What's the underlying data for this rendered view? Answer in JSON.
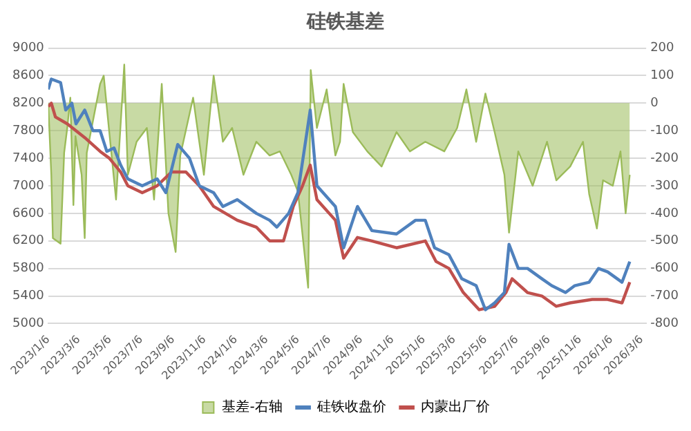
{
  "chart_data": {
    "type": "line",
    "title": "硅铁基差",
    "legend": "bottom",
    "grid": "y",
    "marker": "none",
    "line_style": "solid",
    "ylim": [
      5000,
      9000
    ],
    "yticks": [
      5000,
      5400,
      5800,
      6200,
      6600,
      7000,
      7400,
      7800,
      8200,
      8600,
      9000
    ],
    "y2lim": [
      -800,
      200
    ],
    "y2ticks": [
      -800,
      -700,
      -600,
      -500,
      -400,
      -300,
      -200,
      -100,
      0,
      100,
      200
    ],
    "xlim": [
      "2023-01-06",
      "2026-03-15"
    ],
    "xticks": [
      {
        "value": "2023-01-06",
        "label": "2023/1/6"
      },
      {
        "value": "2023-03-06",
        "label": "2023/3/6"
      },
      {
        "value": "2023-05-06",
        "label": "2023/5/6"
      },
      {
        "value": "2023-07-06",
        "label": "2023/7/6"
      },
      {
        "value": "2023-09-06",
        "label": "2023/9/6"
      },
      {
        "value": "2023-11-06",
        "label": "2023/11/6"
      },
      {
        "value": "2024-01-06",
        "label": "2024/1/6"
      },
      {
        "value": "2024-03-06",
        "label": "2024/3/6"
      },
      {
        "value": "2024-05-06",
        "label": "2024/5/6"
      },
      {
        "value": "2024-07-06",
        "label": "2024/7/6"
      },
      {
        "value": "2024-09-06",
        "label": "2024/9/6"
      },
      {
        "value": "2024-11-06",
        "label": "2024/11/6"
      },
      {
        "value": "2025-01-06",
        "label": "2025/1/6"
      },
      {
        "value": "2025-03-06",
        "label": "2025/3/6"
      },
      {
        "value": "2025-05-06",
        "label": "2025/5/6"
      },
      {
        "value": "2025-07-06",
        "label": "2025/7/6"
      },
      {
        "value": "2025-09-06",
        "label": "2025/9/6"
      },
      {
        "value": "2025-11-06",
        "label": "2025/11/6"
      },
      {
        "value": "2026-01-06",
        "label": "2026/1/6"
      },
      {
        "value": "2026-03-06",
        "label": "2026/3/6"
      }
    ],
    "series": [
      {
        "name": "基差-右轴",
        "type": "area",
        "axis": "y2",
        "color": "#9bbb59",
        "x": [
          "2023-01-06",
          "2023-01-12",
          "2023-01-15",
          "2023-01-30",
          "2023-02-06",
          "2023-02-12",
          "2023-02-18",
          "2023-02-24",
          "2023-02-28",
          "2023-03-12",
          "2023-03-18",
          "2023-03-22",
          "2023-04-17",
          "2023-04-24",
          "2023-05-04",
          "2023-05-18",
          "2023-06-03",
          "2023-06-10",
          "2023-06-27",
          "2023-07-17",
          "2023-07-31",
          "2023-08-15",
          "2023-08-28",
          "2023-09-11",
          "2023-09-20",
          "2023-10-15",
          "2023-11-05",
          "2023-11-24",
          "2023-12-12",
          "2023-12-30",
          "2024-01-21",
          "2024-02-15",
          "2024-03-12",
          "2024-04-01",
          "2024-04-23",
          "2024-05-06",
          "2024-05-26",
          "2024-05-31",
          "2024-06-12",
          "2024-07-01",
          "2024-07-18",
          "2024-07-27",
          "2024-08-03",
          "2024-08-21",
          "2024-09-18",
          "2024-10-16",
          "2024-11-14",
          "2024-12-10",
          "2025-01-09",
          "2025-02-15",
          "2025-03-12",
          "2025-03-30",
          "2025-04-18",
          "2025-05-06",
          "2025-05-24",
          "2025-06-12",
          "2025-06-21",
          "2025-07-09",
          "2025-08-06",
          "2025-09-03",
          "2025-09-21",
          "2025-10-18",
          "2025-11-12",
          "2025-11-24",
          "2025-12-09",
          "2025-12-21",
          "2026-01-09",
          "2026-01-24",
          "2026-02-03",
          "2026-02-11"
        ],
        "values": [
          0,
          -260,
          -490,
          -510,
          -180,
          -90,
          20,
          -370,
          -120,
          -260,
          -490,
          -180,
          70,
          100,
          -90,
          -350,
          140,
          -260,
          -140,
          -90,
          -350,
          70,
          -400,
          -540,
          -190,
          20,
          -260,
          100,
          -140,
          -90,
          -260,
          -140,
          -190,
          -175,
          -260,
          -320,
          -670,
          120,
          -90,
          50,
          -190,
          -140,
          70,
          -105,
          -175,
          -230,
          -105,
          -175,
          -140,
          -175,
          -90,
          50,
          -140,
          35,
          -105,
          -260,
          -470,
          -175,
          -300,
          -140,
          -280,
          -230,
          -140,
          -330,
          -455,
          -280,
          -300,
          -175,
          -400,
          -260
        ]
      },
      {
        "name": "硅铁收盘价",
        "type": "line",
        "color": "#4f81bd",
        "x": [
          "2023-01-06",
          "2023-01-12",
          "2023-01-30",
          "2023-02-09",
          "2023-02-21",
          "2023-03-01",
          "2023-03-18",
          "2023-04-03",
          "2023-04-17",
          "2023-04-30",
          "2023-05-14",
          "2023-05-27",
          "2023-06-10",
          "2023-07-08",
          "2023-08-06",
          "2023-08-23",
          "2023-09-15",
          "2023-10-08",
          "2023-10-27",
          "2023-11-24",
          "2023-12-12",
          "2024-01-09",
          "2024-02-15",
          "2024-03-12",
          "2024-03-26",
          "2024-04-18",
          "2024-05-06",
          "2024-05-30",
          "2024-06-12",
          "2024-07-18",
          "2024-08-03",
          "2024-08-30",
          "2024-09-27",
          "2024-11-14",
          "2024-12-21",
          "2025-01-09",
          "2025-01-27",
          "2025-02-24",
          "2025-03-21",
          "2025-04-18",
          "2025-05-06",
          "2025-05-24",
          "2025-06-12",
          "2025-06-21",
          "2025-07-09",
          "2025-07-27",
          "2025-08-24",
          "2025-09-12",
          "2025-10-09",
          "2025-10-27",
          "2025-11-24",
          "2025-12-12",
          "2025-12-30",
          "2026-01-27",
          "2026-02-11"
        ],
        "values": [
          8400,
          8550,
          8500,
          8100,
          8200,
          7900,
          8100,
          7800,
          7800,
          7500,
          7550,
          7300,
          7100,
          7000,
          7100,
          6900,
          7600,
          7400,
          7000,
          6900,
          6700,
          6800,
          6600,
          6500,
          6400,
          6600,
          6900,
          8100,
          7000,
          6700,
          6100,
          6700,
          6350,
          6300,
          6500,
          6500,
          6100,
          6000,
          5650,
          5550,
          5200,
          5300,
          5450,
          6150,
          5800,
          5800,
          5650,
          5550,
          5450,
          5550,
          5600,
          5800,
          5750,
          5600,
          5900
        ]
      },
      {
        "name": "内蒙出厂价",
        "type": "line",
        "color": "#c0504d",
        "x": [
          "2023-01-06",
          "2023-01-12",
          "2023-01-20",
          "2023-02-12",
          "2023-03-01",
          "2023-03-18",
          "2023-04-17",
          "2023-05-05",
          "2023-05-27",
          "2023-06-10",
          "2023-07-08",
          "2023-08-06",
          "2023-09-03",
          "2023-10-01",
          "2023-10-27",
          "2023-11-24",
          "2024-01-09",
          "2024-02-15",
          "2024-03-12",
          "2024-04-08",
          "2024-04-27",
          "2024-05-15",
          "2024-05-30",
          "2024-06-12",
          "2024-07-18",
          "2024-08-03",
          "2024-08-30",
          "2024-09-27",
          "2024-11-14",
          "2025-01-09",
          "2025-01-30",
          "2025-02-24",
          "2025-03-24",
          "2025-04-24",
          "2025-05-24",
          "2025-06-15",
          "2025-06-27",
          "2025-07-27",
          "2025-08-24",
          "2025-09-21",
          "2025-10-18",
          "2025-11-30",
          "2025-12-30",
          "2026-01-27",
          "2026-02-11"
        ],
        "values": [
          8150,
          8200,
          8000,
          7900,
          7800,
          7700,
          7500,
          7400,
          7200,
          7000,
          6900,
          7000,
          7200,
          7200,
          7000,
          6700,
          6500,
          6400,
          6200,
          6200,
          6700,
          7000,
          7300,
          6800,
          6500,
          5950,
          6250,
          6200,
          6100,
          6200,
          5900,
          5800,
          5450,
          5200,
          5250,
          5450,
          5650,
          5450,
          5400,
          5250,
          5300,
          5350,
          5350,
          5300,
          5600
        ]
      }
    ]
  }
}
